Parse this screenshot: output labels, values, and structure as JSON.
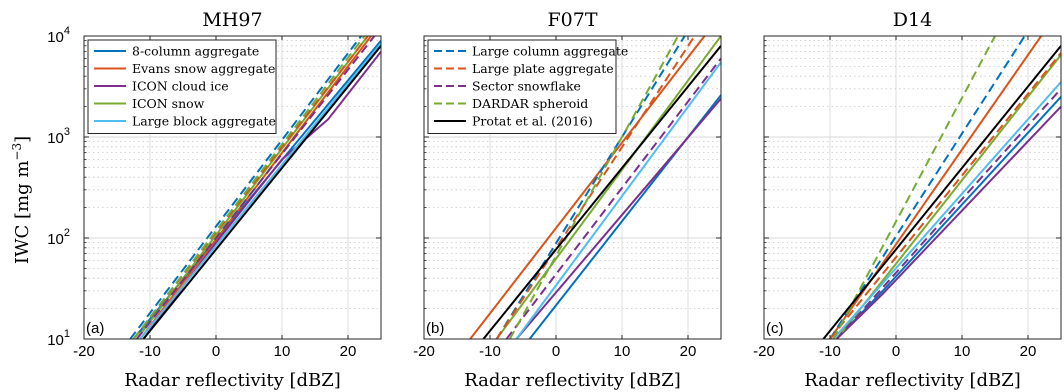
{
  "chart_data": {
    "type": "line",
    "ylabel": "IWC [mg m",
    "ylabel_sup": "−3",
    "ylabel_end": "]",
    "y_scale": "log",
    "ylim": [
      10,
      10000
    ],
    "y_ticks": [
      {
        "value": 10,
        "base": "10",
        "exp": "1"
      },
      {
        "value": 100,
        "base": "10",
        "exp": "2"
      },
      {
        "value": 1000,
        "base": "10",
        "exp": "3"
      },
      {
        "value": 10000,
        "base": "10",
        "exp": "4"
      }
    ],
    "xlim": [
      -20,
      25
    ],
    "x_ticks": [
      -20,
      -10,
      0,
      10,
      20
    ],
    "xlabel": "Radar reflectivity [dBZ]",
    "grid": true,
    "colors": {
      "blue": "#0072BD",
      "orange": "#D95319",
      "purple": "#7E2F8E",
      "green": "#77AC30",
      "cyan": "#4DBEEE",
      "black": "#000000"
    },
    "legends": [
      {
        "panel": 0,
        "entries": [
          {
            "label": "8-column aggregate",
            "color": "#0072BD",
            "dash": false
          },
          {
            "label": "Evans snow aggregate",
            "color": "#D95319",
            "dash": false
          },
          {
            "label": "ICON cloud ice",
            "color": "#7E2F8E",
            "dash": false
          },
          {
            "label": "ICON snow",
            "color": "#77AC30",
            "dash": false
          },
          {
            "label": "Large block aggregate",
            "color": "#4DBEEE",
            "dash": false
          }
        ]
      },
      {
        "panel": 1,
        "entries": [
          {
            "label": "Large column aggregate",
            "color": "#0072BD",
            "dash": true
          },
          {
            "label": "Large plate aggregate",
            "color": "#D95319",
            "dash": true
          },
          {
            "label": "Sector snowflake",
            "color": "#7E2F8E",
            "dash": true
          },
          {
            "label": "DARDAR spheroid",
            "color": "#77AC30",
            "dash": true
          },
          {
            "label": "Protat et al. (2016)",
            "color": "#000000",
            "dash": false
          }
        ]
      }
    ],
    "panels": [
      {
        "title": "MH97",
        "label": "(a)",
        "series": [
          {
            "color": "#0072BD",
            "dash": false,
            "points": [
              [
                -12.5,
                10
              ],
              [
                25,
                9000
              ]
            ]
          },
          {
            "color": "#D95319",
            "dash": false,
            "points": [
              [
                -11.5,
                10
              ],
              [
                23.5,
                10000
              ]
            ]
          },
          {
            "color": "#7E2F8E",
            "dash": false,
            "points": [
              [
                -11,
                10
              ],
              [
                0,
                90
              ],
              [
                10,
                600
              ],
              [
                17,
                1500
              ],
              [
                25,
                7000
              ]
            ]
          },
          {
            "color": "#77AC30",
            "dash": false,
            "points": [
              [
                -12,
                10
              ],
              [
                23,
                10000
              ]
            ]
          },
          {
            "color": "#4DBEEE",
            "dash": false,
            "points": [
              [
                -11.5,
                10
              ],
              [
                25,
                8500
              ]
            ]
          },
          {
            "color": "#0072BD",
            "dash": true,
            "points": [
              [
                -13,
                10
              ],
              [
                22,
                10000
              ]
            ]
          },
          {
            "color": "#D95319",
            "dash": true,
            "points": [
              [
                -12.5,
                10
              ],
              [
                23,
                10000
              ]
            ]
          },
          {
            "color": "#7E2F8E",
            "dash": true,
            "points": [
              [
                -12,
                10
              ],
              [
                24,
                10000
              ]
            ]
          },
          {
            "color": "#77AC30",
            "dash": true,
            "points": [
              [
                -12.5,
                10
              ],
              [
                22.5,
                10000
              ]
            ]
          },
          {
            "color": "#000000",
            "dash": false,
            "points": [
              [
                -11,
                10
              ],
              [
                25,
                8000
              ]
            ]
          }
        ]
      },
      {
        "title": "F07T",
        "label": "(b)",
        "series": [
          {
            "color": "#0072BD",
            "dash": false,
            "points": [
              [
                -4,
                10
              ],
              [
                25,
                2600
              ]
            ]
          },
          {
            "color": "#D95319",
            "dash": false,
            "points": [
              [
                -13,
                10
              ],
              [
                22.5,
                10000
              ]
            ]
          },
          {
            "color": "#7E2F8E",
            "dash": false,
            "points": [
              [
                -6,
                10
              ],
              [
                25,
                2400
              ]
            ]
          },
          {
            "color": "#77AC30",
            "dash": false,
            "points": [
              [
                -9,
                10
              ],
              [
                25,
                10000
              ]
            ]
          },
          {
            "color": "#4DBEEE",
            "dash": false,
            "points": [
              [
                -6,
                10
              ],
              [
                25,
                5500
              ]
            ]
          },
          {
            "color": "#0072BD",
            "dash": true,
            "points": [
              [
                -9,
                10
              ],
              [
                19.5,
                10000
              ]
            ]
          },
          {
            "color": "#D95319",
            "dash": true,
            "points": [
              [
                -9,
                10
              ],
              [
                21,
                10000
              ]
            ]
          },
          {
            "color": "#7E2F8E",
            "dash": true,
            "points": [
              [
                -7.5,
                10
              ],
              [
                25,
                6000
              ]
            ]
          },
          {
            "color": "#77AC30",
            "dash": true,
            "points": [
              [
                -7,
                10
              ],
              [
                18.5,
                10000
              ]
            ]
          },
          {
            "color": "#000000",
            "dash": false,
            "points": [
              [
                -11,
                10
              ],
              [
                25,
                8000
              ]
            ]
          }
        ]
      },
      {
        "title": "D14",
        "label": "(c)",
        "series": [
          {
            "color": "#0072BD",
            "dash": false,
            "points": [
              [
                -9,
                10
              ],
              [
                -2,
                30
              ],
              [
                25,
                2500
              ]
            ]
          },
          {
            "color": "#D95319",
            "dash": false,
            "points": [
              [
                -10,
                10
              ],
              [
                22,
                10000
              ]
            ]
          },
          {
            "color": "#7E2F8E",
            "dash": false,
            "points": [
              [
                -9,
                10
              ],
              [
                -2,
                28
              ],
              [
                25,
                2000
              ]
            ]
          },
          {
            "color": "#77AC30",
            "dash": false,
            "points": [
              [
                -9,
                10
              ],
              [
                25,
                6500
              ]
            ]
          },
          {
            "color": "#4DBEEE",
            "dash": false,
            "points": [
              [
                -9.5,
                10
              ],
              [
                25,
                3500
              ]
            ]
          },
          {
            "color": "#0072BD",
            "dash": true,
            "points": [
              [
                -10,
                10
              ],
              [
                19.5,
                10000
              ]
            ]
          },
          {
            "color": "#D95319",
            "dash": true,
            "points": [
              [
                -10,
                10
              ],
              [
                25,
                6800
              ]
            ]
          },
          {
            "color": "#7E2F8E",
            "dash": true,
            "points": [
              [
                -9,
                10
              ],
              [
                25,
                3000
              ]
            ]
          },
          {
            "color": "#77AC30",
            "dash": true,
            "points": [
              [
                -9.5,
                10
              ],
              [
                15,
                10000
              ]
            ]
          },
          {
            "color": "#000000",
            "dash": false,
            "points": [
              [
                -11,
                10
              ],
              [
                25,
                8000
              ]
            ]
          }
        ]
      }
    ]
  }
}
